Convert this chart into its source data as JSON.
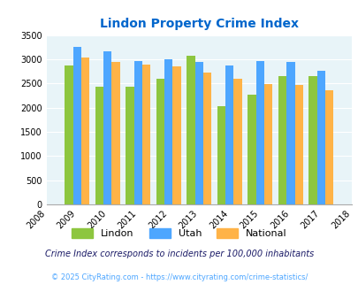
{
  "title": "Lindon Property Crime Index",
  "all_years": [
    2008,
    2009,
    2010,
    2011,
    2012,
    2013,
    2014,
    2015,
    2016,
    2017,
    2018
  ],
  "data_years": [
    2009,
    2010,
    2011,
    2012,
    2013,
    2014,
    2015,
    2016,
    2017
  ],
  "lindon": [
    2880,
    2430,
    2430,
    2600,
    3070,
    2030,
    2270,
    2660,
    2660
  ],
  "utah": [
    3250,
    3160,
    2970,
    3000,
    2940,
    2870,
    2970,
    2940,
    2760
  ],
  "national": [
    3040,
    2940,
    2890,
    2850,
    2720,
    2590,
    2490,
    2470,
    2360
  ],
  "ylim": [
    0,
    3500
  ],
  "yticks": [
    0,
    500,
    1000,
    1500,
    2000,
    2500,
    3000,
    3500
  ],
  "color_lindon": "#8dc63f",
  "color_utah": "#4da6ff",
  "color_national": "#ffb347",
  "bg_color": "#e8f4f8",
  "title_color": "#0066cc",
  "note_text": "Crime Index corresponds to incidents per 100,000 inhabitants",
  "copyright_text": "© 2025 CityRating.com - https://www.cityrating.com/crime-statistics/",
  "legend_labels": [
    "Lindon",
    "Utah",
    "National"
  ],
  "bar_width": 0.27
}
